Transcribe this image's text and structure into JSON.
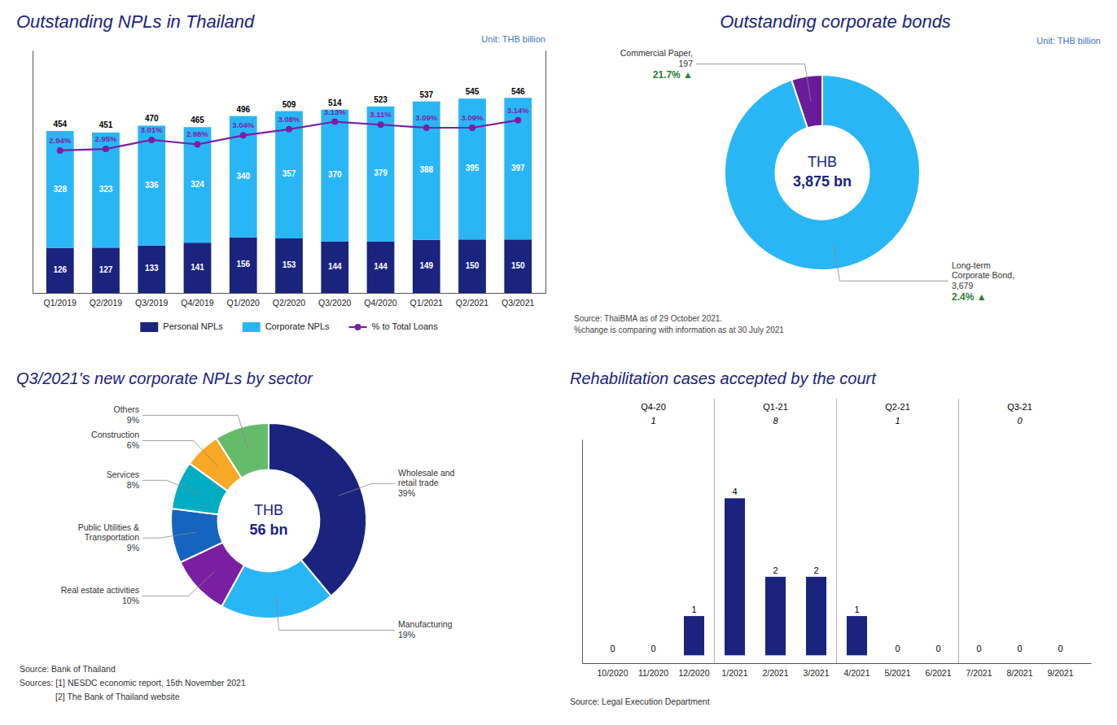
{
  "chart_data": [
    {
      "type": "bar",
      "title": "Outstanding NPLs in Thailand",
      "subtitle": "Unit: THB billion",
      "categories": [
        "Q1/2019",
        "Q2/2019",
        "Q3/2019",
        "Q4/2019",
        "Q1/2020",
        "Q2/2020",
        "Q3/2020",
        "Q4/2020",
        "Q1/2021",
        "Q2/2021",
        "Q3/2021"
      ],
      "series": [
        {
          "name": "Personal NPLs",
          "color": "#1a237e",
          "values": [
            126,
            127,
            133,
            141,
            156,
            153,
            144,
            144,
            149,
            150,
            150
          ]
        },
        {
          "name": "Corporate NPLs",
          "color": "#29b6f6",
          "values": [
            328,
            323,
            336,
            324,
            340,
            357,
            370,
            379,
            388,
            395,
            397
          ]
        },
        {
          "name": "% to Total Loans",
          "color": "#7b1fa2",
          "type": "line",
          "marker": "circle",
          "axis": "y2",
          "values": [
            2.94,
            2.95,
            3.01,
            2.98,
            3.04,
            3.08,
            3.13,
            3.11,
            3.09,
            3.09,
            3.14
          ],
          "value_labels": [
            "2.94%",
            "2.95%",
            "3.01%",
            "2.98%",
            "3.04%",
            "3.08%",
            "3.13%",
            "3.11%",
            "3.09%",
            "3.09%",
            "3.14%"
          ]
        }
      ],
      "totals": [
        454,
        451,
        470,
        465,
        496,
        509,
        514,
        523,
        537,
        545,
        546
      ],
      "stacked": true,
      "data_labels": true,
      "legend": "bottom",
      "tick_labels": "x",
      "ylim": [
        0,
        680
      ],
      "y2lim": [
        2,
        3.6
      ]
    },
    {
      "type": "pie",
      "title": "Outstanding corporate bonds",
      "subtitle": "Unit: THB billion",
      "values": [
        3679,
        197
      ],
      "value_labels": [
        "Long-term\nCorporate Bond,\n3,679",
        "Commercial Paper,\n197"
      ],
      "colors": [
        "#29b6f6",
        "#6a1b9a"
      ],
      "annotations": [
        "THB",
        "3,875 bn"
      ],
      "changes": {
        "labels": [
          "2.4% ▲",
          "21.7% ▲"
        ],
        "color": "#2e7d32"
      },
      "source": "Source: ThaiBMA as of 29 October 2021.\n%change is comparing with information as at 30 July 2021"
    },
    {
      "type": "pie",
      "title": "Q3/2021's new corporate NPLs by sector",
      "values": [
        39,
        19,
        10,
        9,
        8,
        6,
        9
      ],
      "value_labels": [
        "Wholesale and\nretail trade\n39%",
        "Manufacturing\n19%",
        "Real estate activities\n10%",
        "Public Utilities &\nTransportation\n9%",
        "Services\n8%",
        "Construction\n6%",
        "Others\n9%"
      ],
      "colors": [
        "#1a237e",
        "#29b6f6",
        "#7b1fa2",
        "#1565c0",
        "#00acc1",
        "#f9a825",
        "#66bb6a"
      ],
      "annotations": [
        "THB",
        "56 bn"
      ],
      "source": [
        "Source: Bank of Thailand",
        "Sources:  [1] NESDC economic report, 15th November 2021",
        "[2] The Bank of Thailand website"
      ]
    },
    {
      "type": "bar",
      "title": "Rehabilitation cases accepted by the court",
      "categories": [
        "10/2020",
        "11/2020",
        "12/2020",
        "1/2021",
        "2/2021",
        "3/2021",
        "4/2021",
        "5/2021",
        "6/2021",
        "7/2021",
        "8/2021",
        "9/2021"
      ],
      "values": [
        0,
        0,
        1,
        4,
        2,
        2,
        1,
        0,
        0,
        0,
        0,
        0
      ],
      "color": "#1a237e",
      "data_labels": true,
      "tick_labels": "x",
      "ylim": [
        -0.2,
        5.5
      ],
      "quarters": {
        "labels": [
          "Q4-20",
          "Q1-21",
          "Q2-21",
          "Q3-21"
        ],
        "values": [
          1,
          8,
          1,
          0
        ]
      },
      "source": "Source: Legal Execution Department"
    }
  ]
}
